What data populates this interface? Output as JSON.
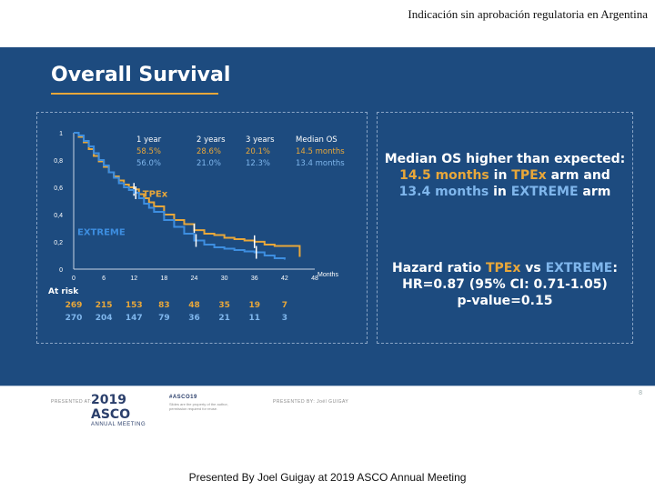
{
  "header_caption": "Indicación sin aprobación regulatoria en Argentina",
  "slide_title": "Overall Survival",
  "colors": {
    "background": "#1d4b7f",
    "tpex": "#e8a73a",
    "extreme": "#3d8ee0",
    "text": "#ffffff"
  },
  "chart_data": {
    "type": "line",
    "title": "Overall Survival",
    "xlabel": "Months",
    "ylabel": "",
    "xlim": [
      0,
      48
    ],
    "ylim": [
      0,
      1
    ],
    "x_ticks": [
      "0",
      "6",
      "12",
      "18",
      "24",
      "30",
      "36",
      "42",
      "48"
    ],
    "y_ticks": [
      "0",
      "0,2",
      "0,4",
      "0,6",
      "0,8",
      "1"
    ],
    "series": [
      {
        "name": "TPEx",
        "color": "#e8a73a",
        "x": [
          0,
          1,
          2,
          3,
          4,
          5,
          6,
          7,
          8,
          9,
          10,
          11,
          12,
          13,
          14,
          15,
          16,
          18,
          20,
          22,
          24,
          26,
          28,
          30,
          32,
          34,
          36,
          38,
          40,
          42,
          44,
          45
        ],
        "y": [
          1,
          0.97,
          0.93,
          0.88,
          0.83,
          0.79,
          0.75,
          0.71,
          0.68,
          0.65,
          0.62,
          0.6,
          0.585,
          0.55,
          0.52,
          0.49,
          0.46,
          0.4,
          0.36,
          0.33,
          0.286,
          0.26,
          0.25,
          0.23,
          0.22,
          0.21,
          0.201,
          0.18,
          0.17,
          0.17,
          0.17,
          0.09
        ]
      },
      {
        "name": "EXTREME",
        "color": "#3d8ee0",
        "x": [
          0,
          1,
          2,
          3,
          4,
          5,
          6,
          7,
          8,
          9,
          10,
          11,
          12,
          13,
          14,
          15,
          16,
          18,
          20,
          22,
          24,
          26,
          28,
          30,
          32,
          34,
          36,
          38,
          40,
          42
        ],
        "y": [
          1,
          0.98,
          0.94,
          0.9,
          0.85,
          0.8,
          0.76,
          0.71,
          0.67,
          0.63,
          0.6,
          0.58,
          0.56,
          0.52,
          0.48,
          0.45,
          0.42,
          0.36,
          0.31,
          0.26,
          0.21,
          0.18,
          0.16,
          0.15,
          0.14,
          0.13,
          0.123,
          0.1,
          0.08,
          0.07
        ]
      }
    ],
    "series_labels": [
      {
        "text": "TPEx",
        "color": "#e8a73a",
        "x": 13,
        "y": 0.53
      },
      {
        "text": "EXTREME",
        "color": "#3d8ee0",
        "x": 0,
        "y": 0.25
      }
    ],
    "stats_table": {
      "headers": [
        "1 year",
        "2 years",
        "3 years",
        "Median OS"
      ],
      "tpex": [
        "58.5%",
        "28.6%",
        "20.1%",
        "14.5 months"
      ],
      "extreme": [
        "56.0%",
        "21.0%",
        "12.3%",
        "13.4 months"
      ]
    },
    "at_risk": {
      "label": "At risk",
      "tpex": [
        "269",
        "215",
        "153",
        "83",
        "48",
        "35",
        "19",
        "7"
      ],
      "extreme": [
        "270",
        "204",
        "147",
        "79",
        "36",
        "21",
        "11",
        "3"
      ]
    }
  },
  "summary": {
    "line1": "Median OS higher than expected:",
    "tpex_months": "14.5 months",
    "in": "in",
    "tpex": "TPEx",
    "arm_and": "arm and",
    "extreme_months": "13.4 months",
    "extreme": "EXTREME",
    "arm": "arm",
    "hr_prefix": "Hazard ratio",
    "vs": "vs",
    "colon": ":",
    "hr_value": "HR=0.87 (95% CI: 0.71-1.05)",
    "p_value": "p-value=0.15"
  },
  "footer": {
    "presented_at": "PRESENTED AT:",
    "asco_year": "2019 ASCO",
    "asco_sub": "ANNUAL MEETING",
    "hashtag": "#ASCO19",
    "note": "Slides are the property of the author, permission required for reuse.",
    "presented_by": "PRESENTED BY: Joël GUIGAY",
    "page_number": "8"
  },
  "bottom_caption": "Presented By Joel Guigay at 2019 ASCO Annual Meeting"
}
